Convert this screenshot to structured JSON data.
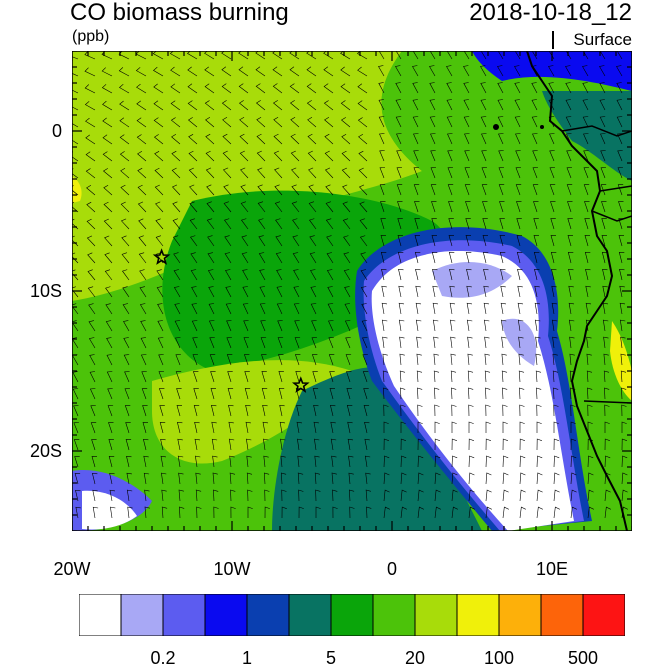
{
  "header": {
    "title": "CO biomass burning",
    "units": "(ppb)",
    "datetime": "2018-10-18_12",
    "level": "Surface"
  },
  "map": {
    "region": "Southeast Atlantic / Southwest Africa",
    "lon_range": [
      -20,
      15
    ],
    "lat_range": [
      -25,
      5
    ],
    "x_ticks": [
      {
        "lon": -20,
        "label": "20W"
      },
      {
        "lon": -10,
        "label": "10W"
      },
      {
        "lon": 0,
        "label": "0"
      },
      {
        "lon": 10,
        "label": "10E"
      }
    ],
    "y_ticks": [
      {
        "lat": 0,
        "label": "0"
      },
      {
        "lat": -10,
        "label": "10S"
      },
      {
        "lat": -20,
        "label": "20S"
      }
    ],
    "markers": [
      {
        "lon": -14.4,
        "lat": -7.9,
        "icon": "star-icon"
      },
      {
        "lon": -5.7,
        "lat": -15.9,
        "icon": "star-icon"
      }
    ],
    "overlay": "wind-barbs"
  },
  "colorbar": {
    "colors": [
      "#ffffff",
      "#a8a8f5",
      "#5c5cf0",
      "#0a0af0",
      "#0a3fb0",
      "#087362",
      "#0aa50a",
      "#4cc30a",
      "#a8dc0a",
      "#f0f00a",
      "#fdb00a",
      "#fd640a",
      "#fd1414"
    ],
    "labels": [
      {
        "boundary": 2,
        "text": "0.2"
      },
      {
        "boundary": 4,
        "text": "1"
      },
      {
        "boundary": 6,
        "text": "5"
      },
      {
        "boundary": 8,
        "text": "20"
      },
      {
        "boundary": 10,
        "text": "100"
      },
      {
        "boundary": 12,
        "text": "500"
      }
    ]
  }
}
